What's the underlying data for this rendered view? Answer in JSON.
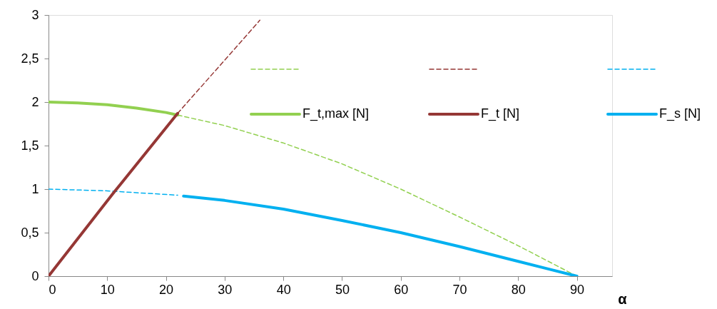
{
  "chart_data": {
    "type": "line",
    "xlabel": "α",
    "xlim": [
      0,
      96
    ],
    "ylim": [
      0,
      3
    ],
    "xticks": [
      0,
      10,
      20,
      30,
      40,
      50,
      60,
      70,
      80,
      90
    ],
    "yticks": [
      0,
      {
        "value": 0.5,
        "label": "0,5"
      },
      1,
      {
        "value": 1.5,
        "label": "1,5"
      },
      2,
      {
        "value": 2.5,
        "label": "2,5"
      },
      3
    ],
    "grid": false,
    "legend": "top",
    "series": [
      {
        "color": "#92d050",
        "line_style": "dashed",
        "x": [
          22,
          30,
          40,
          50,
          60,
          70,
          80,
          90
        ],
        "values": [
          1.85,
          1.73,
          1.53,
          1.29,
          1.0,
          0.68,
          0.35,
          0.0
        ]
      },
      {
        "color": "#953735",
        "line_style": "dashed",
        "x": [
          22,
          36
        ],
        "values": [
          1.87,
          2.94
        ]
      },
      {
        "color": "#00b0f0",
        "line_style": "dashed",
        "x": [
          0,
          10,
          22
        ],
        "values": [
          1.0,
          0.98,
          0.93
        ]
      },
      {
        "name": "F_t,max [N]",
        "color": "#92d050",
        "line_style": "solid",
        "x": [
          0,
          5,
          10,
          15,
          20,
          22
        ],
        "values": [
          2.0,
          1.99,
          1.97,
          1.93,
          1.88,
          1.85
        ]
      },
      {
        "name": "F_t [N]",
        "color": "#953735",
        "line_style": "solid",
        "x": [
          0,
          11,
          22
        ],
        "values": [
          0.0,
          0.95,
          1.87
        ]
      },
      {
        "name": "F_s [N]",
        "color": "#00b0f0",
        "line_style": "solid",
        "x": [
          23,
          30,
          40,
          50,
          60,
          70,
          80,
          90
        ],
        "values": [
          0.92,
          0.87,
          0.77,
          0.64,
          0.5,
          0.34,
          0.17,
          0.0
        ]
      }
    ]
  }
}
